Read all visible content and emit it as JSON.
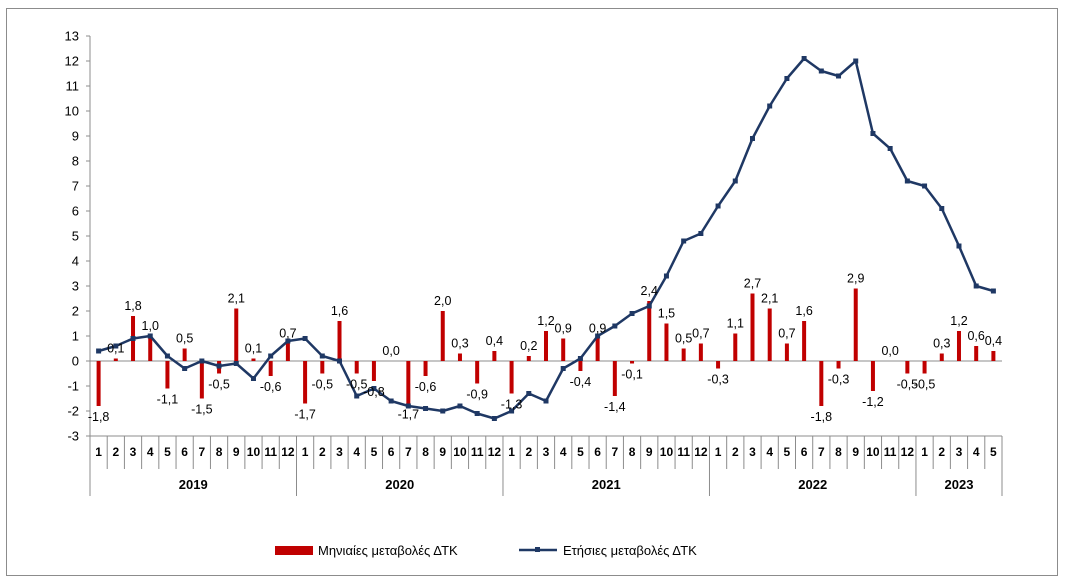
{
  "chart_data": {
    "type": "bar+line",
    "ylim": [
      -3,
      13
    ],
    "yticks": [
      "13",
      "12",
      "11",
      "10",
      "9",
      "8",
      "7",
      "6",
      "5",
      "4",
      "3",
      "2",
      "1",
      "0",
      "-1",
      "-2",
      "-3"
    ],
    "ytick_values": [
      13,
      12,
      11,
      10,
      9,
      8,
      7,
      6,
      5,
      4,
      3,
      2,
      1,
      0,
      -1,
      -2,
      -3
    ],
    "months": [
      "1",
      "2",
      "3",
      "4",
      "5",
      "6",
      "7",
      "8",
      "9",
      "10",
      "11",
      "12",
      "1",
      "2",
      "3",
      "4",
      "5",
      "6",
      "7",
      "8",
      "9",
      "10",
      "11",
      "12",
      "1",
      "2",
      "3",
      "4",
      "5",
      "6",
      "7",
      "8",
      "9",
      "10",
      "11",
      "12",
      "1",
      "2",
      "3",
      "4",
      "5",
      "6",
      "7",
      "8",
      "9",
      "10",
      "11",
      "12",
      "1",
      "2",
      "3",
      "4",
      "5"
    ],
    "years": [
      {
        "label": "2019",
        "start": 0,
        "count": 12
      },
      {
        "label": "2020",
        "start": 12,
        "count": 12
      },
      {
        "label": "2021",
        "start": 24,
        "count": 12
      },
      {
        "label": "2022",
        "start": 36,
        "count": 12
      },
      {
        "label": "2023",
        "start": 48,
        "count": 5
      }
    ],
    "series": [
      {
        "name": "Μηνιαίες μεταβολές ΔΤΚ",
        "kind": "bar",
        "color": "#c00000",
        "values": [
          -1.8,
          0.1,
          1.8,
          1.0,
          -1.1,
          0.5,
          -1.5,
          -0.5,
          2.1,
          0.1,
          -0.6,
          0.7,
          -1.7,
          -0.5,
          1.6,
          -0.5,
          -0.8,
          0.0,
          -1.7,
          -0.6,
          2.0,
          0.3,
          -0.9,
          0.4,
          -1.3,
          0.2,
          1.2,
          0.9,
          -0.4,
          0.9,
          -1.4,
          -0.1,
          2.4,
          1.5,
          0.5,
          0.7,
          -0.3,
          1.1,
          2.7,
          2.1,
          0.7,
          1.6,
          -1.8,
          -0.3,
          2.9,
          -1.2,
          0.0,
          -0.5,
          -0.5,
          0.3,
          1.2,
          0.6,
          0.4
        ],
        "labels": [
          "-1,8",
          "0,1",
          "1,8",
          "1,0",
          "-1,1",
          "0,5",
          "-1,5",
          "-0,5",
          "2,1",
          "0,1",
          "-0,6",
          "0,7",
          "-1,7",
          "-0,5",
          "1,6",
          "-0,5",
          "-0,8",
          "0,0",
          "-1,7",
          "-0,6",
          "2,0",
          "0,3",
          "-0,9",
          "0,4",
          "-1,3",
          "0,2",
          "1,2",
          "0,9",
          "-0,4",
          "0,9",
          "-1,4",
          "-0,1",
          "2,4",
          "1,5",
          "0,5",
          "0,7",
          "-0,3",
          "1,1",
          "2,7",
          "2,1",
          "0,7",
          "1,6",
          "-1,8",
          "-0,3",
          "2,9",
          "-1,2",
          "0,0",
          "-0,5",
          "-0,5",
          "0,3",
          "1,2",
          "0,6",
          "0,4"
        ]
      },
      {
        "name": "Ετήσιες μεταβολές ΔΤΚ",
        "kind": "line",
        "color": "#1f3864",
        "values": [
          0.4,
          0.6,
          0.9,
          1.0,
          0.2,
          -0.3,
          0.0,
          -0.2,
          -0.1,
          -0.7,
          0.2,
          0.8,
          0.9,
          0.2,
          0.0,
          -1.4,
          -1.1,
          -1.6,
          -1.8,
          -1.9,
          -2.0,
          -1.8,
          -2.1,
          -2.3,
          -2.0,
          -1.3,
          -1.6,
          -0.3,
          0.1,
          1.0,
          1.4,
          1.9,
          2.2,
          3.4,
          4.8,
          5.1,
          6.2,
          7.2,
          8.9,
          10.2,
          11.3,
          12.1,
          11.6,
          11.4,
          12.0,
          9.1,
          8.5,
          7.2,
          7.0,
          6.1,
          4.6,
          3.0,
          2.8
        ]
      }
    ],
    "legend_position": "bottom-center",
    "grid": false
  }
}
